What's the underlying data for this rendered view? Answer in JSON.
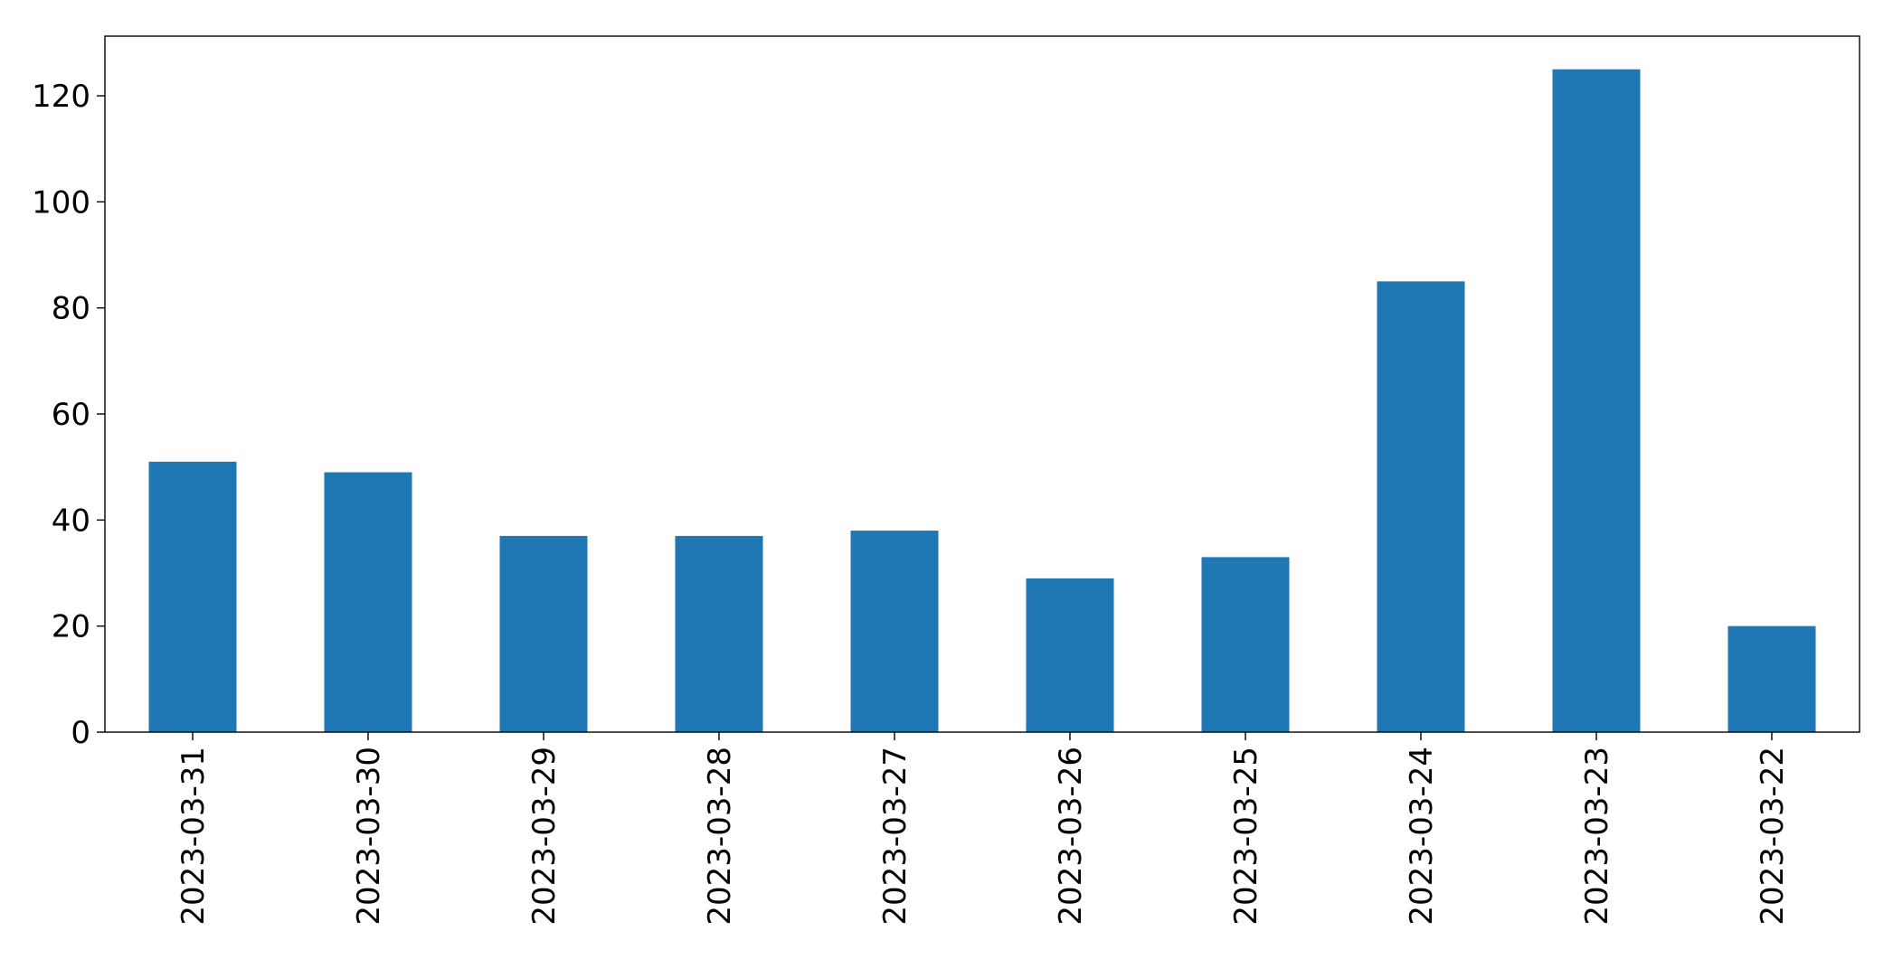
{
  "chart_data": {
    "type": "bar",
    "categories": [
      "2023-03-31",
      "2023-03-30",
      "2023-03-29",
      "2023-03-28",
      "2023-03-27",
      "2023-03-26",
      "2023-03-25",
      "2023-03-24",
      "2023-03-23",
      "2023-03-22"
    ],
    "values": [
      51,
      49,
      37,
      37,
      38,
      29,
      33,
      85,
      125,
      20
    ],
    "title": "",
    "xlabel": "",
    "ylabel": "",
    "ylim": [
      0,
      131.25
    ],
    "yticks": [
      0,
      20,
      40,
      60,
      80,
      100,
      120
    ],
    "grid": false,
    "legend": "none",
    "bar_color": "#1f77b4"
  }
}
